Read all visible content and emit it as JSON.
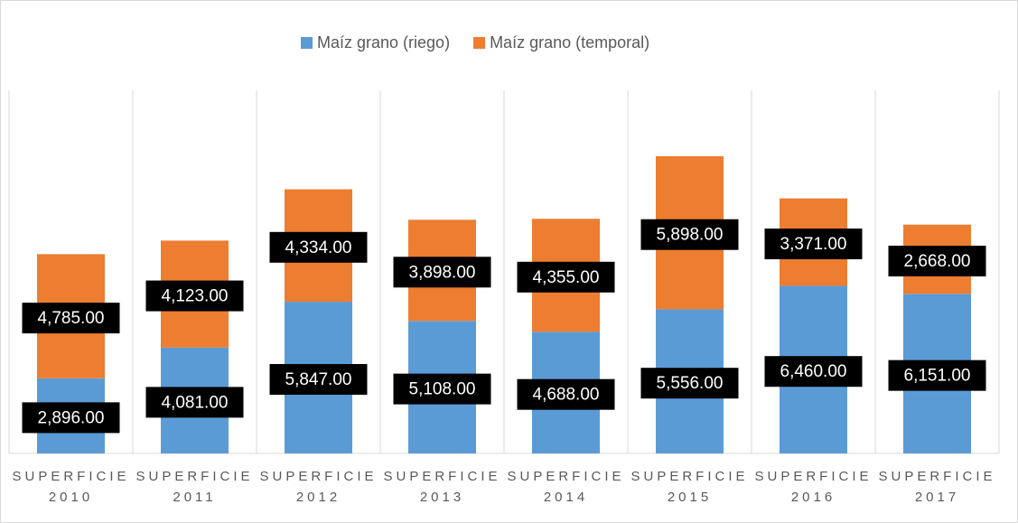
{
  "chart_data": {
    "type": "stacked_bar",
    "categories": [
      "SUPERFICIE 2010",
      "SUPERFICIE 2011",
      "SUPERFICIE 2012",
      "SUPERFICIE 2013",
      "SUPERFICIE 2014",
      "SUPERFICIE 2015",
      "SUPERFICIE 2016",
      "SUPERFICIE 2017"
    ],
    "series": [
      {
        "name": "Maíz grano (riego)",
        "color": "#5b9bd5",
        "values": [
          2896,
          4081,
          5847,
          5108,
          4688,
          5556,
          6460,
          6151
        ],
        "value_labels": [
          "2,896.00",
          "4,081.00",
          "5,847.00",
          "5,108.00",
          "4,688.00",
          "5,556.00",
          "6,460.00",
          "6,151.00"
        ]
      },
      {
        "name": "Maíz grano (temporal)",
        "color": "#ed7d31",
        "values": [
          4785,
          4123,
          4334,
          3898,
          4355,
          5898,
          3371,
          2668
        ],
        "value_labels": [
          "4,785.00",
          "4,123.00",
          "4,334.00",
          "3,898.00",
          "4,355.00",
          "5,898.00",
          "3,371.00",
          "2,668.00"
        ]
      }
    ],
    "legend": "top"
  }
}
